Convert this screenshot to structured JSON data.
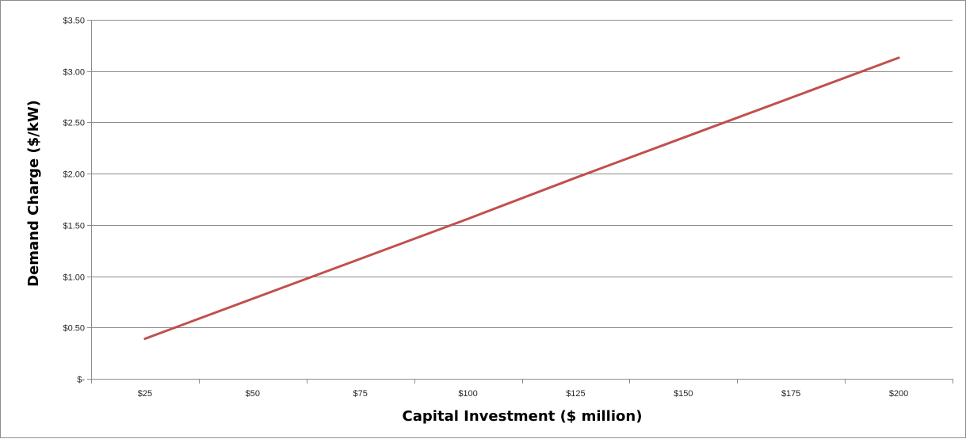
{
  "chart_data": {
    "type": "line",
    "title": "",
    "xlabel": "Capital Investment ($ million)",
    "ylabel": "Demand Charge ($/kW)",
    "x": [
      25,
      50,
      75,
      100,
      125,
      150,
      175,
      200
    ],
    "x_tick_labels": [
      "$25",
      "$50",
      "$75",
      "$100",
      "$125",
      "$150",
      "$175",
      "$200"
    ],
    "y_tick_values": [
      0,
      0.5,
      1.0,
      1.5,
      2.0,
      2.5,
      3.0,
      3.5
    ],
    "y_tick_labels": [
      "$-",
      "$0.50",
      "$1.00",
      "$1.50",
      "$2.00",
      "$2.50",
      "$3.00",
      "$3.50"
    ],
    "ylim": [
      0,
      3.5
    ],
    "grid": true,
    "legend": "none",
    "series": [
      {
        "color": "#c0504d",
        "values": [
          0.39,
          0.78,
          1.17,
          1.56,
          1.96,
          2.35,
          2.74,
          3.13
        ]
      }
    ]
  }
}
